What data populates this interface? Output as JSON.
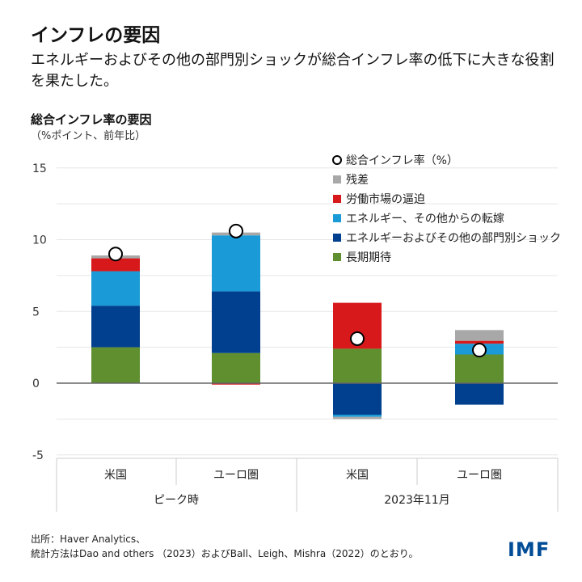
{
  "title": "インフレの要因",
  "subtitle": "エネルギーおよびその他の部門別ショックが総合インフレ率の低下に大きな役割を果たした。",
  "chart_data": {
    "type": "bar",
    "stacked": true,
    "title": "総合インフレ率の要因",
    "ylabel": "（%ポイント、前年比）",
    "ylim": [
      -5,
      15
    ],
    "yticks": [
      -5,
      0,
      5,
      10,
      15
    ],
    "grid": true,
    "legend_position": "top-right",
    "categories": [
      "米国",
      "ユーロ圏",
      "米国",
      "ユーロ圏"
    ],
    "groups": [
      {
        "label": "ピーク時",
        "categories": [
          0,
          1
        ]
      },
      {
        "label": "2023年11月",
        "categories": [
          2,
          3
        ]
      }
    ],
    "series": [
      {
        "name": "長期期待",
        "color": "#5f8f2f",
        "values": [
          2.5,
          2.1,
          2.4,
          2.0
        ]
      },
      {
        "name": "エネルギーおよびその他の部門別ショック",
        "color": "#00408f",
        "values": [
          2.9,
          4.3,
          -2.2,
          -1.5
        ]
      },
      {
        "name": "エネルギー、その他からの転嫁",
        "color": "#1a9ad6",
        "values": [
          2.4,
          3.9,
          -0.15,
          0.75
        ]
      },
      {
        "name": "労働市場の逼迫",
        "color": "#d7191c",
        "values": [
          0.9,
          -0.1,
          3.2,
          0.2
        ]
      },
      {
        "name": "残差",
        "color": "#a8a8a8",
        "values": [
          0.2,
          0.2,
          -0.15,
          0.75
        ]
      }
    ],
    "headline": {
      "name": "総合インフレ率（%）",
      "values": [
        9.0,
        10.6,
        3.1,
        2.3
      ]
    }
  },
  "source_lines": [
    "出所：Haver Analytics、",
    "統計方法はDao and others （2023）およびBall、Leigh、Mishra（2022）のとおり。"
  ],
  "logo": "IMF"
}
